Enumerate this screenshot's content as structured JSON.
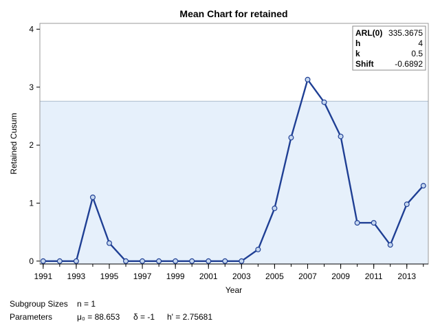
{
  "chart_data": {
    "type": "line",
    "title": "Mean Chart for retained",
    "xlabel": "Year",
    "ylabel": "Retained Cusum",
    "x_tick_labels": [
      "1991",
      "1993",
      "1995",
      "1997",
      "1999",
      "2001",
      "2003",
      "2005",
      "2007",
      "2009",
      "2011",
      "2013"
    ],
    "y_tick_labels": [
      "0",
      "1",
      "2",
      "3",
      "4"
    ],
    "xlim": [
      1990.8,
      2014.3
    ],
    "ylim": [
      -0.05,
      4.1
    ],
    "x": [
      1991,
      1992,
      1993,
      1994,
      1995,
      1996,
      1997,
      1998,
      1999,
      2000,
      2001,
      2002,
      2003,
      2004,
      2005,
      2006,
      2007,
      2008,
      2009,
      2010,
      2011,
      2012,
      2013,
      2014
    ],
    "values": [
      0,
      0,
      0,
      1.1,
      0.31,
      0,
      0,
      0,
      0,
      0,
      0,
      0,
      0,
      0.2,
      0.91,
      2.13,
      3.13,
      2.74,
      2.15,
      0.66,
      0.66,
      0.28,
      0.98,
      1.3
    ],
    "decision_interval": 2.75681,
    "grid": false,
    "legend": "none",
    "colors": {
      "line": "#1f3f94",
      "marker_fill": "#c6d8f0",
      "band_fill": "#e6f0fb",
      "band_edge": "#a9b9cc",
      "frame": "#999999"
    },
    "inset": {
      "rows": [
        {
          "key": "ARL(0)",
          "value": "335.3675"
        },
        {
          "key": "h",
          "value": "4"
        },
        {
          "key": "k",
          "value": "0.5"
        },
        {
          "key": "Shift",
          "value": "-0.6892"
        }
      ]
    },
    "footer": {
      "subgroup_label": "Subgroup Sizes",
      "subgroup_value": "n = 1",
      "params_label": "Parameters",
      "mu": "μ₀ = 88.653",
      "delta": "δ = -1",
      "hprime": "h' = 2.75681"
    }
  }
}
